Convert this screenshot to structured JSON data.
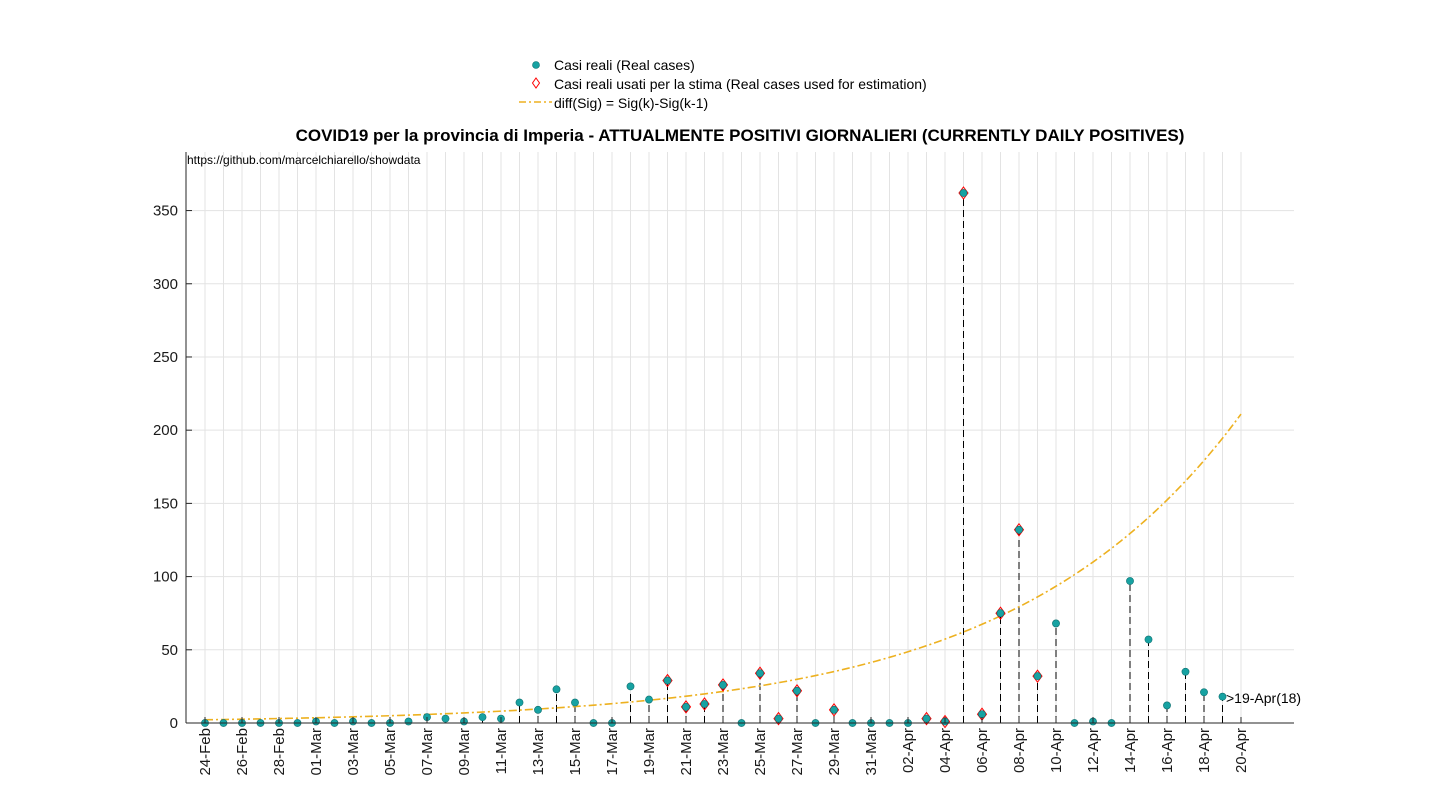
{
  "chart_data": {
    "type": "scatter",
    "title": "COVID19 per la provincia di Imperia - ATTUALMENTE POSITIVI GIORNALIERI (CURRENTLY DAILY POSITIVES)",
    "source_note": "https://github.com/marcelchiarello/showdata",
    "annotation": ">19-Apr(18)",
    "grid": true,
    "legend_position": "top-center",
    "ylim": [
      0,
      390
    ],
    "yticks": [
      0,
      50,
      100,
      150,
      200,
      250,
      300,
      350
    ],
    "x_days": [
      "24-Feb",
      "25-Feb",
      "26-Feb",
      "27-Feb",
      "28-Feb",
      "29-Feb",
      "01-Mar",
      "02-Mar",
      "03-Mar",
      "04-Mar",
      "05-Mar",
      "06-Mar",
      "07-Mar",
      "08-Mar",
      "09-Mar",
      "10-Mar",
      "11-Mar",
      "12-Mar",
      "13-Mar",
      "14-Mar",
      "15-Mar",
      "16-Mar",
      "17-Mar",
      "18-Mar",
      "19-Mar",
      "20-Mar",
      "21-Mar",
      "22-Mar",
      "23-Mar",
      "24-Mar",
      "25-Mar",
      "26-Mar",
      "27-Mar",
      "28-Mar",
      "29-Mar",
      "30-Mar",
      "31-Mar",
      "01-Apr",
      "02-Apr",
      "03-Apr",
      "04-Apr",
      "05-Apr",
      "06-Apr",
      "07-Apr",
      "08-Apr",
      "09-Apr",
      "10-Apr",
      "11-Apr",
      "12-Apr",
      "13-Apr",
      "14-Apr",
      "15-Apr",
      "16-Apr",
      "17-Apr",
      "18-Apr",
      "19-Apr",
      "20-Apr"
    ],
    "x_tick_labels": [
      "24-Feb",
      "26-Feb",
      "28-Feb",
      "01-Mar",
      "03-Mar",
      "05-Mar",
      "07-Mar",
      "09-Mar",
      "11-Mar",
      "13-Mar",
      "15-Mar",
      "17-Mar",
      "19-Mar",
      "21-Mar",
      "23-Mar",
      "25-Mar",
      "27-Mar",
      "29-Mar",
      "31-Mar",
      "02-Apr",
      "04-Apr",
      "06-Apr",
      "08-Apr",
      "10-Apr",
      "12-Apr",
      "14-Apr",
      "16-Apr",
      "18-Apr",
      "20-Apr"
    ],
    "series": [
      {
        "name": "Casi reali (Real cases)",
        "marker": "circle",
        "color": "#17A2A2",
        "values": [
          0,
          0,
          0,
          0,
          0,
          0,
          1,
          0,
          1,
          0,
          0,
          1,
          4,
          3,
          1,
          4,
          3,
          14,
          9,
          23,
          14,
          0,
          0,
          25,
          16,
          29,
          11,
          13,
          26,
          0,
          34,
          3,
          22,
          0,
          9,
          0,
          0,
          0,
          0,
          3,
          1,
          362,
          6,
          75,
          132,
          32,
          68,
          0,
          1,
          0,
          97,
          57,
          12,
          35,
          21,
          18
        ]
      },
      {
        "name": "Casi reali usati per la stima (Real cases used for estimation)",
        "marker": "diamond",
        "color": "#FF0000",
        "x_start_index": 39,
        "values_note": "subset of real cases",
        "points": [
          [
            25,
            29
          ],
          [
            26,
            11
          ],
          [
            27,
            13
          ],
          [
            28,
            26
          ],
          [
            30,
            34
          ],
          [
            31,
            3
          ],
          [
            32,
            22
          ],
          [
            34,
            9
          ],
          [
            39,
            3
          ],
          [
            40,
            1
          ],
          [
            41,
            362
          ],
          [
            42,
            6
          ],
          [
            43,
            75
          ],
          [
            44,
            132
          ],
          [
            45,
            32
          ]
        ]
      },
      {
        "name": "diff(Sig) = Sig(k)-Sig(k-1)",
        "style": "dash-dot",
        "color": "#EDB120",
        "curve": {
          "kind": "exponential",
          "y0": 2.2,
          "y_end": 211
        }
      }
    ]
  }
}
